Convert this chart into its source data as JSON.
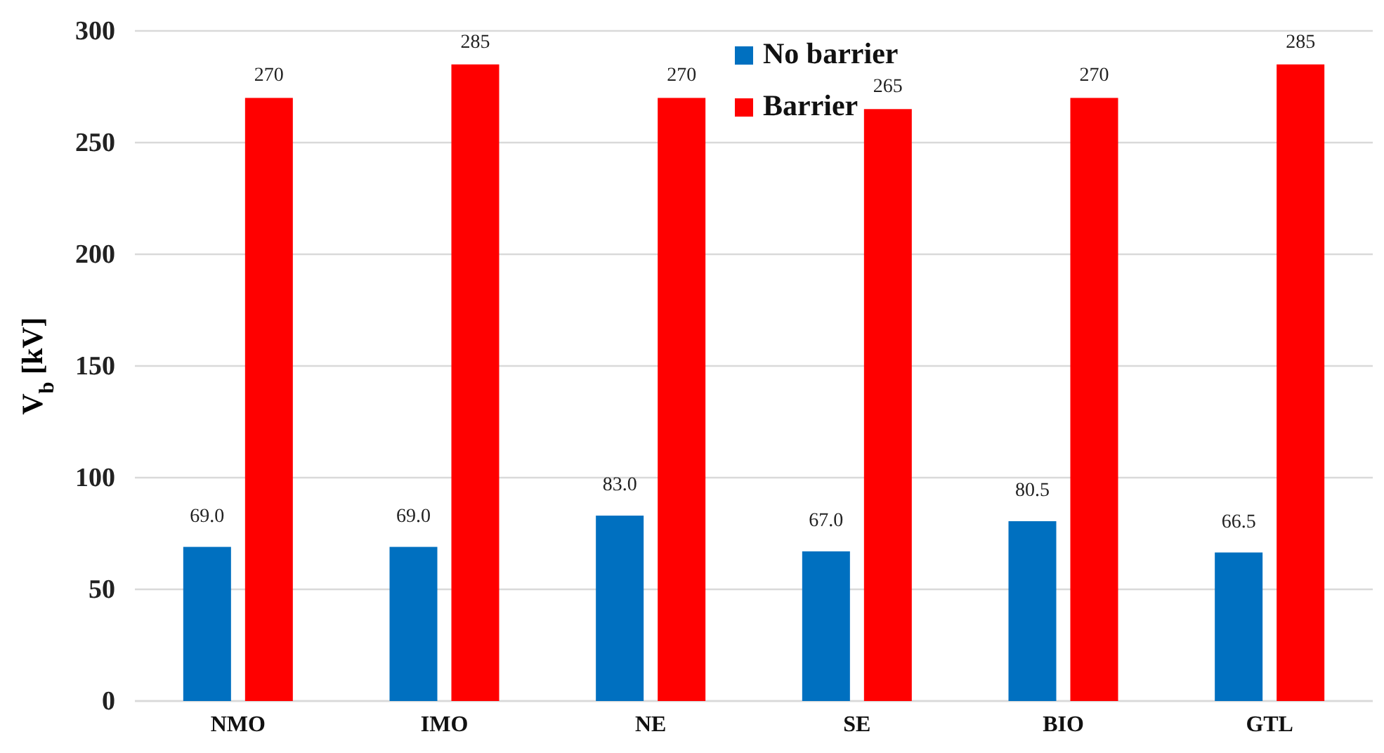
{
  "chart_data": {
    "type": "bar",
    "ylabel": "V$_{b}$ [kV]",
    "categories": [
      "NMO",
      "IMO",
      "NE",
      "SE",
      "BIO",
      "GTL"
    ],
    "series": [
      {
        "name": "No barrier",
        "color": "#0070c0",
        "values": [
          69.0,
          69.0,
          83.0,
          67.0,
          80.5,
          66.5
        ],
        "value_labels": [
          "69.0",
          "69.0",
          "83.0",
          "67.0",
          "80.5",
          "66.5"
        ]
      },
      {
        "name": "Barrier",
        "color": "#ff0000",
        "values": [
          270,
          285,
          270,
          265,
          270,
          285
        ],
        "value_labels": [
          "270",
          "285",
          "270",
          "265",
          "270",
          "285"
        ]
      }
    ],
    "ylim": [
      0,
      300
    ],
    "yticks": [
      0,
      50,
      100,
      150,
      200,
      250,
      300
    ],
    "grid": "y",
    "legend": "top"
  }
}
